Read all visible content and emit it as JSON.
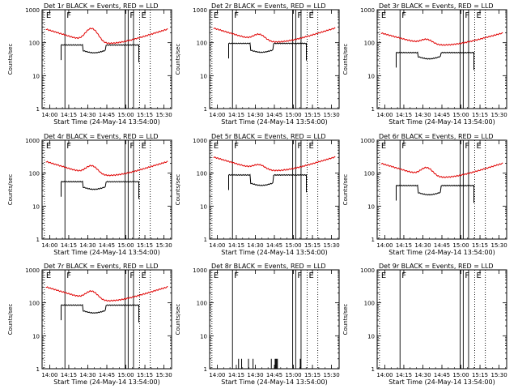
{
  "chart_data": {
    "type": "line",
    "layout": "3x3 grid of panels",
    "shared": {
      "xlabel": "Start Time (24-May-14 13:54:00)",
      "ylabel": "Counts/sec",
      "y_scale": "log",
      "ylim": [
        1,
        1000
      ],
      "y_tick_labels": [
        "1",
        "10",
        "100",
        "1000"
      ],
      "xlim_hours": [
        13.9,
        15.6
      ],
      "x_tick_hours": [
        14.0,
        14.25,
        14.5,
        14.75,
        15.0,
        15.25,
        15.5
      ],
      "x_tick_labels": [
        "14:00",
        "14:15",
        "14:30",
        "14:45",
        "15:00",
        "15:15",
        "15:30"
      ],
      "legend": {
        "black": "Events",
        "red": "LLD"
      },
      "colors": {
        "events": "#000000",
        "lld": "#e00000",
        "axes": "#000000"
      },
      "markers": [
        {
          "label": "E",
          "hour": 13.93,
          "style": "dotted"
        },
        {
          "label": "F",
          "hour": 14.2,
          "style": "solid"
        },
        {
          "label": "F",
          "hour": 15.03,
          "style": "solid"
        },
        {
          "label": "E",
          "hour": 15.18,
          "style": "dotted"
        }
      ],
      "extra_solid_lines_hours": [
        14.99,
        15.1
      ],
      "extra_dotted_lines_hours": [
        15.32
      ]
    },
    "panels": [
      {
        "title": "Det 1r BLACK = Events, RED = LLD",
        "lld_base": 95,
        "lld_amp": 0.78,
        "lld_bump": 260,
        "events": {
          "start": 14.15,
          "end": 15.17,
          "level": 85,
          "dip_start": 14.43,
          "dip_end": 14.73,
          "dip_level": 58
        }
      },
      {
        "title": "Det 2r BLACK = Events, RED = LLD",
        "lld_base": 105,
        "lld_amp": 0.75,
        "lld_bump": 170,
        "events": {
          "start": 14.15,
          "end": 15.17,
          "level": 95,
          "dip_start": 14.43,
          "dip_end": 14.73,
          "dip_level": 60
        }
      },
      {
        "title": "Det 3r BLACK = Events, RED = LLD",
        "lld_base": 85,
        "lld_amp": 0.6,
        "lld_bump": 120,
        "events": {
          "start": 14.15,
          "end": 15.17,
          "level": 50,
          "dip_start": 14.43,
          "dip_end": 14.73,
          "dip_level": 38
        }
      },
      {
        "title": "Det 4r BLACK = Events, RED = LLD",
        "lld_base": 85,
        "lld_amp": 0.75,
        "lld_bump": 160,
        "events": {
          "start": 14.15,
          "end": 15.17,
          "level": 55,
          "dip_start": 14.43,
          "dip_end": 14.73,
          "dip_level": 38
        }
      },
      {
        "title": "Det 5r BLACK = Events, RED = LLD",
        "lld_base": 120,
        "lld_amp": 0.72,
        "lld_bump": 170,
        "events": {
          "start": 14.15,
          "end": 15.17,
          "level": 88,
          "dip_start": 14.43,
          "dip_end": 14.73,
          "dip_level": 50
        }
      },
      {
        "title": "Det 6r BLACK = Events, RED = LLD",
        "lld_base": 75,
        "lld_amp": 0.75,
        "lld_bump": 140,
        "events": {
          "start": 14.15,
          "end": 15.17,
          "level": 42,
          "dip_start": 14.43,
          "dip_end": 14.73,
          "dip_level": 26
        }
      },
      {
        "title": "Det 7r BLACK = Events, RED = LLD",
        "lld_base": 115,
        "lld_amp": 0.75,
        "lld_bump": 215,
        "events": {
          "start": 14.15,
          "end": 15.17,
          "level": 85,
          "dip_start": 14.43,
          "dip_end": 14.73,
          "dip_level": 58
        }
      },
      {
        "title": "Det 8r BLACK = Events, RED = LLD",
        "spikes_hours": [
          14.28,
          14.32,
          14.41,
          14.47,
          14.71,
          14.76,
          14.77,
          14.78,
          14.79,
          15.09
        ],
        "spike_level": 2.0
      },
      {
        "title": "Det 9r BLACK = Events, RED = LLD"
      }
    ]
  }
}
